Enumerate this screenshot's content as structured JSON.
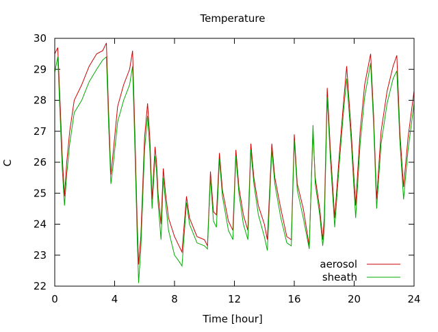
{
  "chart_data": {
    "type": "line",
    "title": "Temperature",
    "xlabel": "Time [hour]",
    "ylabel": "C",
    "xlim": [
      0,
      24
    ],
    "ylim": [
      22,
      30
    ],
    "xticks": [
      0,
      4,
      8,
      12,
      16,
      20,
      24
    ],
    "yticks": [
      22,
      23,
      24,
      25,
      26,
      27,
      28,
      29,
      30
    ],
    "grid": false,
    "legend_position": "bottom-right",
    "series": [
      {
        "name": "aerosol",
        "color": "#cc0000",
        "points": [
          [
            0,
            29.5
          ],
          [
            0.2,
            29.7
          ],
          [
            0.35,
            28.0
          ],
          [
            0.5,
            26.2
          ],
          [
            0.65,
            24.9
          ],
          [
            0.8,
            26.0
          ],
          [
            1.0,
            27.0
          ],
          [
            1.3,
            28.0
          ],
          [
            1.8,
            28.5
          ],
          [
            2.3,
            29.1
          ],
          [
            2.8,
            29.5
          ],
          [
            3.2,
            29.6
          ],
          [
            3.45,
            29.85
          ],
          [
            3.6,
            27.6
          ],
          [
            3.75,
            25.6
          ],
          [
            3.9,
            26.3
          ],
          [
            4.2,
            27.8
          ],
          [
            4.6,
            28.5
          ],
          [
            5.0,
            29.0
          ],
          [
            5.2,
            29.6
          ],
          [
            5.35,
            27.0
          ],
          [
            5.5,
            24.2
          ],
          [
            5.6,
            22.7
          ],
          [
            5.75,
            23.6
          ],
          [
            6.0,
            26.8
          ],
          [
            6.2,
            27.9
          ],
          [
            6.35,
            26.8
          ],
          [
            6.5,
            24.8
          ],
          [
            6.7,
            26.5
          ],
          [
            6.8,
            26.0
          ],
          [
            6.9,
            25.0
          ],
          [
            7.1,
            24.0
          ],
          [
            7.25,
            25.8
          ],
          [
            7.4,
            25.0
          ],
          [
            7.6,
            24.2
          ],
          [
            8.0,
            23.6
          ],
          [
            8.3,
            23.3
          ],
          [
            8.5,
            23.1
          ],
          [
            8.8,
            24.9
          ],
          [
            9.0,
            24.2
          ],
          [
            9.5,
            23.6
          ],
          [
            10.0,
            23.5
          ],
          [
            10.2,
            23.3
          ],
          [
            10.4,
            25.7
          ],
          [
            10.6,
            24.4
          ],
          [
            10.8,
            24.3
          ],
          [
            11.0,
            26.3
          ],
          [
            11.2,
            25.1
          ],
          [
            11.6,
            24.1
          ],
          [
            11.9,
            23.8
          ],
          [
            12.1,
            26.4
          ],
          [
            12.3,
            25.2
          ],
          [
            12.6,
            24.3
          ],
          [
            12.9,
            23.8
          ],
          [
            13.1,
            26.6
          ],
          [
            13.3,
            25.5
          ],
          [
            13.6,
            24.6
          ],
          [
            14.0,
            24.0
          ],
          [
            14.2,
            23.5
          ],
          [
            14.5,
            26.6
          ],
          [
            14.7,
            25.5
          ],
          [
            15.1,
            24.5
          ],
          [
            15.5,
            23.6
          ],
          [
            15.8,
            23.5
          ],
          [
            16.0,
            26.9
          ],
          [
            16.2,
            25.3
          ],
          [
            16.6,
            24.5
          ],
          [
            17.0,
            23.3
          ],
          [
            17.25,
            27.0
          ],
          [
            17.4,
            25.5
          ],
          [
            17.7,
            24.5
          ],
          [
            17.9,
            23.5
          ],
          [
            18.0,
            24.2
          ],
          [
            18.2,
            28.4
          ],
          [
            18.4,
            26.5
          ],
          [
            18.7,
            24.2
          ],
          [
            19.0,
            26.2
          ],
          [
            19.3,
            28.0
          ],
          [
            19.5,
            29.1
          ],
          [
            19.8,
            27.0
          ],
          [
            20.1,
            24.6
          ],
          [
            20.4,
            27.0
          ],
          [
            20.7,
            28.5
          ],
          [
            21.1,
            29.5
          ],
          [
            21.3,
            27.5
          ],
          [
            21.5,
            24.8
          ],
          [
            21.8,
            27.0
          ],
          [
            22.2,
            28.3
          ],
          [
            22.6,
            29.1
          ],
          [
            22.85,
            29.45
          ],
          [
            23.05,
            27.0
          ],
          [
            23.3,
            25.2
          ],
          [
            23.6,
            26.8
          ],
          [
            24.0,
            28.3
          ]
        ]
      },
      {
        "name": "sheath",
        "color": "#00aa00",
        "points": [
          [
            0,
            28.9
          ],
          [
            0.2,
            29.4
          ],
          [
            0.35,
            27.6
          ],
          [
            0.5,
            25.8
          ],
          [
            0.65,
            24.6
          ],
          [
            0.8,
            25.6
          ],
          [
            1.0,
            26.6
          ],
          [
            1.3,
            27.6
          ],
          [
            1.8,
            28.0
          ],
          [
            2.3,
            28.6
          ],
          [
            2.8,
            29.0
          ],
          [
            3.2,
            29.3
          ],
          [
            3.45,
            29.4
          ],
          [
            3.6,
            27.2
          ],
          [
            3.75,
            25.3
          ],
          [
            3.9,
            25.9
          ],
          [
            4.2,
            27.3
          ],
          [
            4.6,
            28.0
          ],
          [
            5.0,
            28.5
          ],
          [
            5.2,
            29.1
          ],
          [
            5.35,
            26.5
          ],
          [
            5.5,
            23.7
          ],
          [
            5.6,
            22.1
          ],
          [
            5.75,
            23.2
          ],
          [
            6.0,
            26.4
          ],
          [
            6.2,
            27.5
          ],
          [
            6.35,
            26.4
          ],
          [
            6.5,
            24.5
          ],
          [
            6.7,
            26.2
          ],
          [
            6.8,
            25.7
          ],
          [
            6.9,
            24.7
          ],
          [
            7.1,
            23.5
          ],
          [
            7.25,
            25.5
          ],
          [
            7.4,
            24.7
          ],
          [
            7.6,
            23.8
          ],
          [
            8.0,
            23.0
          ],
          [
            8.3,
            22.8
          ],
          [
            8.5,
            22.65
          ],
          [
            8.8,
            24.7
          ],
          [
            9.0,
            24.0
          ],
          [
            9.5,
            23.4
          ],
          [
            10.0,
            23.3
          ],
          [
            10.2,
            23.2
          ],
          [
            10.4,
            25.5
          ],
          [
            10.6,
            24.1
          ],
          [
            10.8,
            23.9
          ],
          [
            11.0,
            26.1
          ],
          [
            11.2,
            24.9
          ],
          [
            11.6,
            23.8
          ],
          [
            11.9,
            23.5
          ],
          [
            12.1,
            26.2
          ],
          [
            12.3,
            25.0
          ],
          [
            12.6,
            24.0
          ],
          [
            12.9,
            23.5
          ],
          [
            13.1,
            26.4
          ],
          [
            13.3,
            25.3
          ],
          [
            13.6,
            24.3
          ],
          [
            14.0,
            23.6
          ],
          [
            14.2,
            23.15
          ],
          [
            14.5,
            26.4
          ],
          [
            14.7,
            25.3
          ],
          [
            15.1,
            24.2
          ],
          [
            15.5,
            23.4
          ],
          [
            15.8,
            23.3
          ],
          [
            16.0,
            26.7
          ],
          [
            16.2,
            25.1
          ],
          [
            16.6,
            24.2
          ],
          [
            17.0,
            23.2
          ],
          [
            17.25,
            27.2
          ],
          [
            17.4,
            25.3
          ],
          [
            17.7,
            24.3
          ],
          [
            17.9,
            23.3
          ],
          [
            18.0,
            23.8
          ],
          [
            18.2,
            28.1
          ],
          [
            18.4,
            26.2
          ],
          [
            18.7,
            23.9
          ],
          [
            19.0,
            25.9
          ],
          [
            19.3,
            27.7
          ],
          [
            19.5,
            28.7
          ],
          [
            19.8,
            26.7
          ],
          [
            20.1,
            24.2
          ],
          [
            20.4,
            26.6
          ],
          [
            20.7,
            28.1
          ],
          [
            21.1,
            29.2
          ],
          [
            21.3,
            27.2
          ],
          [
            21.5,
            24.5
          ],
          [
            21.8,
            26.6
          ],
          [
            22.2,
            27.9
          ],
          [
            22.6,
            28.7
          ],
          [
            22.85,
            28.95
          ],
          [
            23.05,
            26.7
          ],
          [
            23.3,
            24.8
          ],
          [
            23.6,
            26.4
          ],
          [
            24.0,
            27.9
          ]
        ]
      }
    ]
  }
}
